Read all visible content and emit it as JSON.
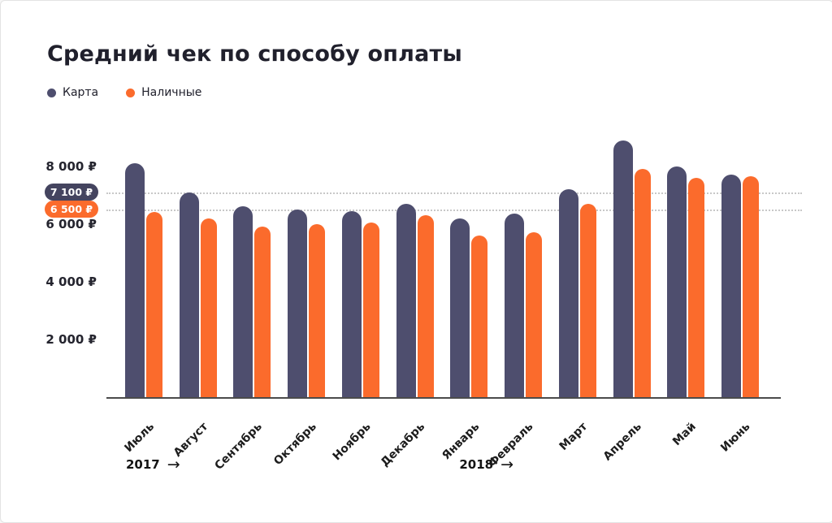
{
  "header": {
    "title": "Средний чек по способу оплаты"
  },
  "legend": {
    "items": [
      {
        "label": "Карта",
        "color": "#4E4E6E"
      },
      {
        "label": "Наличные",
        "color": "#FB6B2C"
      }
    ]
  },
  "chart_data": {
    "type": "bar",
    "title": "Средний чек по способу оплаты",
    "categories": [
      "Июль",
      "Август",
      "Сентябрь",
      "Октябрь",
      "Ноябрь",
      "Декабрь",
      "Январь",
      "Февраль",
      "Март",
      "Апрель",
      "Май",
      "Июнь"
    ],
    "series": [
      {
        "name": "Карта",
        "color": "#4E4E6E",
        "values": [
          8100,
          7100,
          6600,
          6500,
          6450,
          6700,
          6200,
          6350,
          7200,
          8900,
          8000,
          7700
        ]
      },
      {
        "name": "Наличные",
        "color": "#FB6B2C",
        "values": [
          6400,
          6200,
          5900,
          6000,
          6050,
          6300,
          5600,
          5700,
          6700,
          7900,
          7600,
          7650
        ]
      }
    ],
    "ylim": [
      0,
      9000
    ],
    "yticks": [
      {
        "value": 8000,
        "label": "8 000 ₽"
      },
      {
        "value": 6000,
        "label": "6 000 ₽"
      },
      {
        "value": 4000,
        "label": "4 000 ₽"
      },
      {
        "value": 2000,
        "label": "2 000 ₽"
      }
    ],
    "reference_lines": [
      {
        "value": 7100,
        "label": "7 100 ₽",
        "color": "#44445F"
      },
      {
        "value": 6500,
        "label": "6 500 ₽",
        "color": "#FB6B2C"
      }
    ],
    "x_axis_years": [
      {
        "label": "2017",
        "arrow": "→"
      },
      {
        "label": "2018",
        "arrow": "→"
      }
    ],
    "grid": false,
    "legend_position": "top-left",
    "currency": "₽"
  }
}
